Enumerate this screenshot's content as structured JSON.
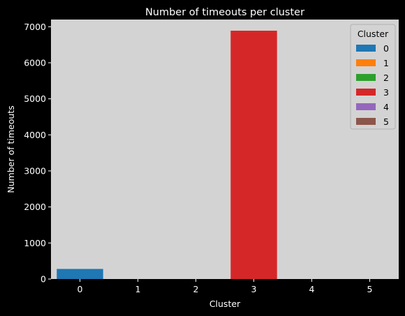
{
  "chart_data": {
    "type": "bar",
    "title": "Number of timeouts per cluster",
    "xlabel": "Cluster",
    "ylabel": "Number of timeouts",
    "categories": [
      "0",
      "1",
      "2",
      "3",
      "4",
      "5"
    ],
    "values": [
      280,
      0,
      0,
      6890,
      0,
      0
    ],
    "colors": [
      "#1f77b4",
      "#ff7f0e",
      "#2ca02c",
      "#d62728",
      "#9467bd",
      "#8c564b"
    ],
    "ylim": [
      0,
      7200
    ],
    "yticks": [
      0,
      1000,
      2000,
      3000,
      4000,
      5000,
      6000,
      7000
    ],
    "grid": false,
    "plot_background": "#d3d3d3",
    "figure_background": "#000000",
    "legend": {
      "title": "Cluster",
      "placement": "top-right",
      "entries": [
        "0",
        "1",
        "2",
        "3",
        "4",
        "5"
      ]
    }
  }
}
